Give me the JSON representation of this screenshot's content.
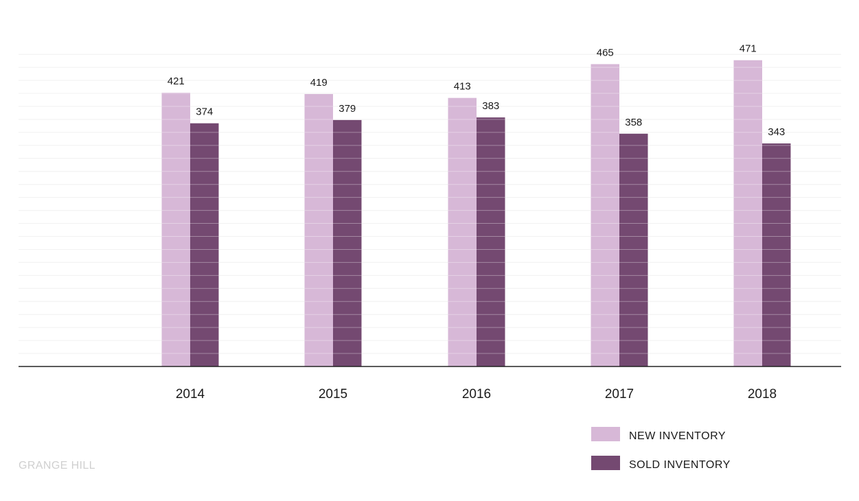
{
  "chart_data": {
    "type": "bar",
    "categories": [
      "2014",
      "2015",
      "2016",
      "2017",
      "2018"
    ],
    "series": [
      {
        "name": "NEW INVENTORY",
        "values": [
          421,
          419,
          413,
          465,
          471
        ],
        "color": "#d7b8d7"
      },
      {
        "name": "SOLD INVENTORY",
        "values": [
          374,
          379,
          383,
          358,
          343
        ],
        "color": "#744971"
      }
    ],
    "ylim": [
      0,
      480
    ],
    "gridlines": true,
    "data_labels": true,
    "legend_position": "bottom-right",
    "title": "",
    "xlabel": "",
    "ylabel": ""
  },
  "watermark": "GRANGE HILL"
}
